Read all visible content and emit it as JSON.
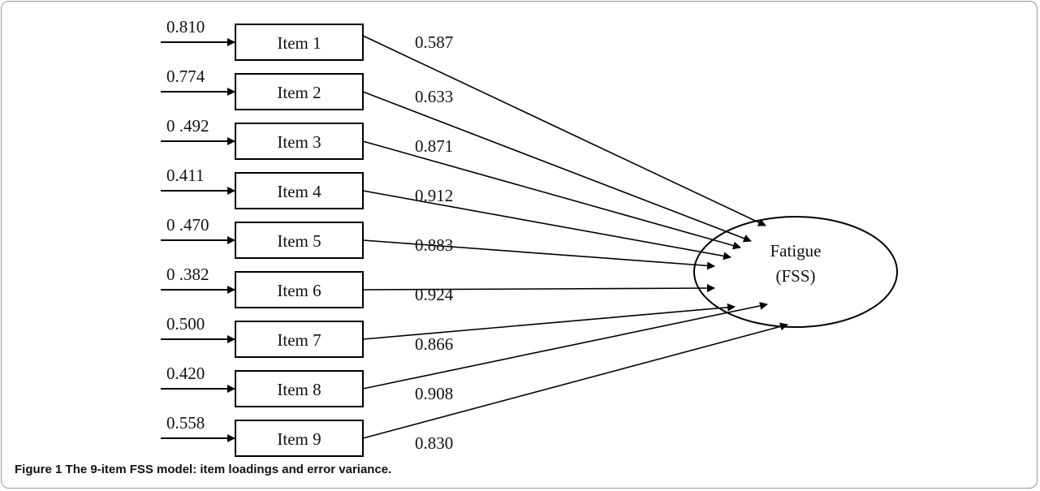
{
  "diagram": {
    "latent": {
      "line1": "Fatigue",
      "line2": "(FSS)"
    },
    "items": [
      {
        "label": "Item 1",
        "error_variance": "0.810",
        "loading": "0.587"
      },
      {
        "label": "Item 2",
        "error_variance": "0.774",
        "loading": "0.633"
      },
      {
        "label": "Item 3",
        "error_variance": "0 .492",
        "loading": "0.871"
      },
      {
        "label": "Item 4",
        "error_variance": "0.411",
        "loading": "0.912"
      },
      {
        "label": "Item 5",
        "error_variance": "0 .470",
        "loading": "0.883"
      },
      {
        "label": "Item 6",
        "error_variance": "0 .382",
        "loading": "0.924"
      },
      {
        "label": "Item 7",
        "error_variance": "0.500",
        "loading": "0.866"
      },
      {
        "label": "Item 8",
        "error_variance": "0.420",
        "loading": "0.908"
      },
      {
        "label": "Item 9",
        "error_variance": "0.558",
        "loading": "0.830"
      }
    ]
  },
  "caption": {
    "label": "Figure 1",
    "text": "The 9-item FSS model: item loadings and error variance."
  }
}
